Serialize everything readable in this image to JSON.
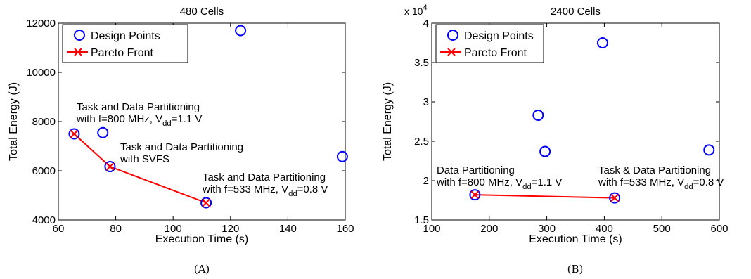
{
  "chart_data": [
    {
      "type": "scatter",
      "title": "480 Cells",
      "xlabel": "Execution Time (s)",
      "ylabel": "Total Energy (J)",
      "xlim": [
        60,
        160
      ],
      "ylim": [
        4000,
        12000
      ],
      "xticks": [
        "60",
        "80",
        "100",
        "120",
        "140",
        "160"
      ],
      "yticks": [
        "4000",
        "6000",
        "8000",
        "10000",
        "12000"
      ],
      "xtick_values": [
        60,
        80,
        100,
        120,
        140,
        160
      ],
      "ytick_values": [
        4000,
        6000,
        8000,
        10000,
        12000
      ],
      "grid": false,
      "legend_position": "top-left",
      "caption": "(A)",
      "series": [
        {
          "name": "Design Points",
          "marker": "circle",
          "color": "#0000ff",
          "x": [
            65.5,
            75.5,
            78,
            111.5,
            123.5,
            159
          ],
          "y": [
            7500,
            7550,
            6170,
            4700,
            11700,
            6580
          ]
        },
        {
          "name": "Pareto Front",
          "marker": "x",
          "line": true,
          "color": "#ff0000",
          "x": [
            65.5,
            78,
            111.5
          ],
          "y": [
            7500,
            6170,
            4700
          ]
        }
      ],
      "annotations": [
        {
          "lines": [
            {
              "text": "Task and Data Partitioning"
            },
            {
              "text": "with f=800 MHz, V",
              "sub": "dd",
              "tail": "=1.1 V"
            }
          ]
        },
        {
          "lines": [
            {
              "text": "Task and Data Partitioning"
            },
            {
              "text": "with SVFS"
            }
          ]
        },
        {
          "lines": [
            {
              "text": "Task and Data Partitioning"
            },
            {
              "text": "with f=533 MHz, V",
              "sub": "dd",
              "tail": "=0.8 V"
            }
          ]
        }
      ]
    },
    {
      "type": "scatter",
      "title": "2400 Cells",
      "xlabel": "Execution Time (s)",
      "ylabel": "Total Energy (J)",
      "multiplier": "x 10",
      "multiplier_exp": "4",
      "xlim": [
        100,
        600
      ],
      "ylim": [
        1.5,
        4
      ],
      "xticks": [
        "100",
        "200",
        "300",
        "400",
        "500",
        "600"
      ],
      "yticks": [
        "1.5",
        "2",
        "2.5",
        "3",
        "3.5",
        "4"
      ],
      "xtick_values": [
        100,
        200,
        300,
        400,
        500,
        600
      ],
      "ytick_values": [
        1.5,
        2,
        2.5,
        3,
        3.5,
        4
      ],
      "grid": false,
      "legend_position": "top-left",
      "caption": "(B)",
      "series": [
        {
          "name": "Design Points",
          "marker": "circle",
          "color": "#0000ff",
          "x": [
            175,
            285,
            297,
            397,
            418,
            582
          ],
          "y": [
            1.82,
            2.83,
            2.37,
            3.75,
            1.78,
            2.39
          ]
        },
        {
          "name": "Pareto Front",
          "marker": "x",
          "line": true,
          "color": "#ff0000",
          "x": [
            175,
            418
          ],
          "y": [
            1.82,
            1.78
          ]
        }
      ],
      "annotations": [
        {
          "lines": [
            {
              "text": "Data Partitioning"
            },
            {
              "text": "with f=800 MHz, V",
              "sub": "dd",
              "tail": "=1.1 V"
            }
          ]
        },
        {
          "lines": [
            {
              "text": "Task & Data Partitioning"
            },
            {
              "text": "with f=533 MHz, V",
              "sub": "dd",
              "tail": "=0.8 V"
            }
          ]
        }
      ]
    }
  ]
}
